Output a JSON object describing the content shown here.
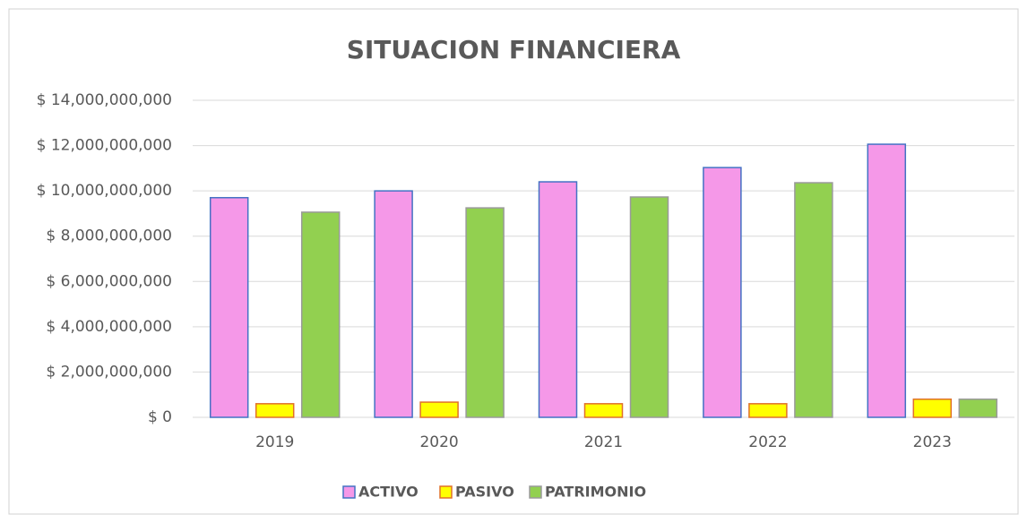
{
  "chart_data": {
    "type": "bar",
    "title": "SITUACION FINANCIERA",
    "categories": [
      "2019",
      "2020",
      "2021",
      "2022",
      "2023"
    ],
    "series": [
      {
        "name": "ACTIVO",
        "color": "#f598e8",
        "border": "#4472c4",
        "values": [
          9700000000,
          10000000000,
          10400000000,
          11030000000,
          12060000000
        ]
      },
      {
        "name": "PASIVO",
        "color": "#ffff00",
        "border": "#e0702a",
        "values": [
          600000000,
          670000000,
          600000000,
          600000000,
          800000000
        ]
      },
      {
        "name": "PATRIMONIO",
        "color": "#92d050",
        "border": "#9a9a9a",
        "values": [
          9060000000,
          9250000000,
          9730000000,
          10360000000,
          800000000
        ]
      }
    ],
    "ylim": [
      0,
      14000000000
    ],
    "yticks": [
      {
        "value": 0,
        "label": "$ 0"
      },
      {
        "value": 2000000000,
        "label": "$ 2,000,000,000"
      },
      {
        "value": 4000000000,
        "label": "$ 4,000,000,000"
      },
      {
        "value": 6000000000,
        "label": "$ 6,000,000,000"
      },
      {
        "value": 8000000000,
        "label": "$ 8,000,000,000"
      },
      {
        "value": 10000000000,
        "label": "$ 10,000,000,000"
      },
      {
        "value": 12000000000,
        "label": "$ 12,000,000,000"
      },
      {
        "value": 14000000000,
        "label": "$ 14,000,000,000"
      }
    ],
    "grid": true,
    "legend": "bottom"
  }
}
